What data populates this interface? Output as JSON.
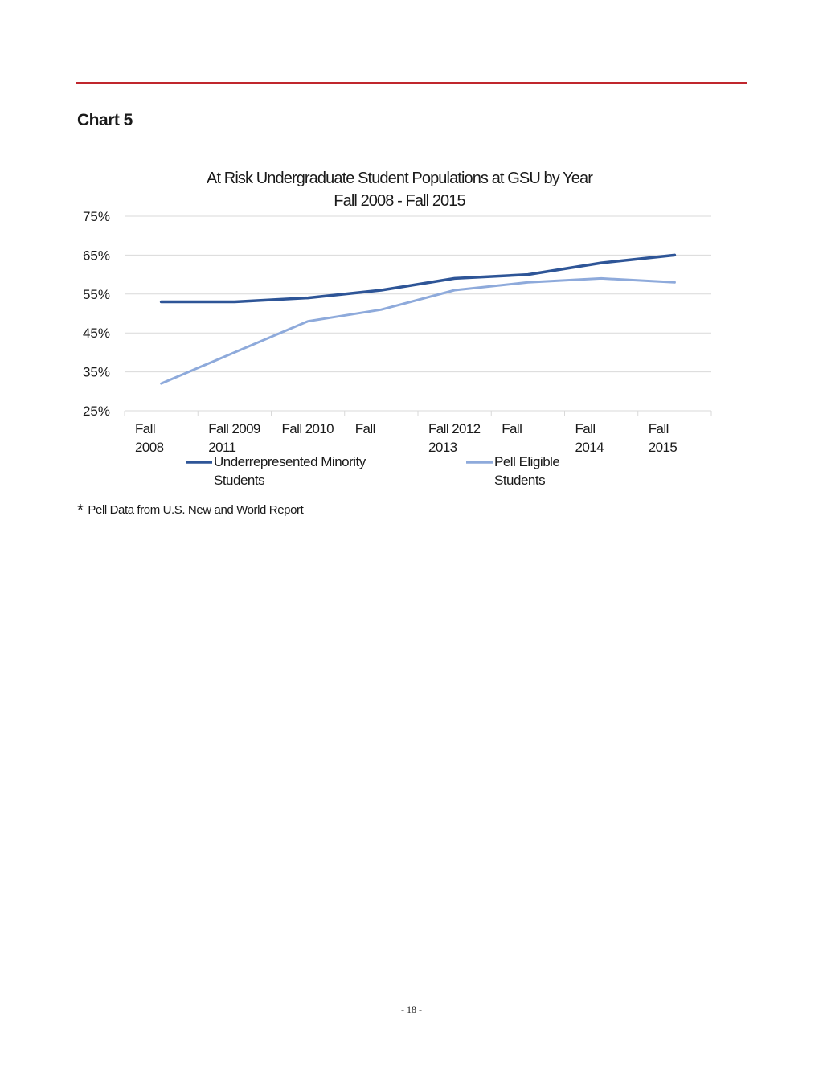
{
  "page": {
    "heading": "Chart 5",
    "footnote_marker": "*",
    "footnote": "Pell Data from U.S. New and World Report",
    "page_number": "- 18 -",
    "rule_color": "#c0262d"
  },
  "chart_data": {
    "type": "line",
    "title_lines": [
      "At Risk Undergraduate Student Populations at GSU by Year",
      "Fall 2008 - Fall 2015"
    ],
    "categories": [
      "Fall 2008",
      "Fall 2009",
      "Fall 2010",
      "Fall 2011",
      "Fall 2012",
      "Fall 2013",
      "Fall 2014",
      "Fall 2015"
    ],
    "x_tick_labels": [
      [
        "Fall",
        "2008"
      ],
      [
        "Fall 2009",
        "2011"
      ],
      [
        "Fall 2010",
        ""
      ],
      [
        "Fall",
        ""
      ],
      [
        "Fall 2012",
        "2013"
      ],
      [
        "Fall",
        ""
      ],
      [
        "Fall",
        "2014"
      ],
      [
        "Fall",
        "2015"
      ]
    ],
    "ylim": [
      0.25,
      0.75
    ],
    "yticks": [
      0.25,
      0.35,
      0.45,
      0.55,
      0.65,
      0.75
    ],
    "ytick_labels": [
      "25%",
      "35%",
      "45%",
      "55%",
      "65%",
      "75%"
    ],
    "grid": true,
    "legend_position": "bottom",
    "series": [
      {
        "name": "Underrepresented Minority Students",
        "legend_lines": [
          "Underrepresented Minority",
          "Students"
        ],
        "color": "#2e5597",
        "values": [
          0.53,
          0.53,
          0.54,
          0.56,
          0.59,
          0.6,
          0.63,
          0.65
        ]
      },
      {
        "name": "Pell Eligible Students",
        "legend_lines": [
          "Pell Eligible",
          "Students"
        ],
        "color": "#8eaadb",
        "values": [
          0.32,
          0.4,
          0.48,
          0.51,
          0.56,
          0.58,
          0.59,
          0.58
        ]
      }
    ]
  }
}
